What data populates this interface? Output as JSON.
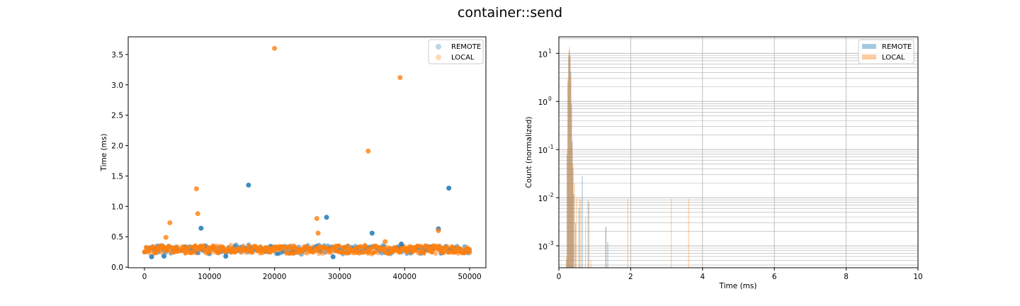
{
  "figure": {
    "title": "container::send"
  },
  "colors": {
    "remote": "#1f77b4",
    "local": "#ff7f0e",
    "grid": "#b0b0b0",
    "axis": "#000000"
  },
  "chart_data": [
    {
      "type": "scatter",
      "title": "",
      "xlabel": "",
      "ylabel": "Time (ms)",
      "xlim": [
        -2500,
        52500
      ],
      "ylim": [
        -0.01,
        3.79
      ],
      "xticks": [
        "0",
        "10000",
        "20000",
        "30000",
        "40000",
        "50000"
      ],
      "xtick_values": [
        0,
        10000,
        20000,
        30000,
        40000,
        50000
      ],
      "yticks": [
        "0.0",
        "0.5",
        "1.0",
        "1.5",
        "2.0",
        "2.5",
        "3.0",
        "3.5"
      ],
      "ytick_values": [
        0.0,
        0.5,
        1.0,
        1.5,
        2.0,
        2.5,
        3.0,
        3.5
      ],
      "grid": false,
      "legend": {
        "placement": "top-right",
        "entries": [
          "REMOTE",
          "LOCAL"
        ]
      },
      "band": {
        "x_range": [
          0,
          50000
        ],
        "y_range": [
          0.2,
          0.38
        ],
        "typical": 0.28
      },
      "series": [
        {
          "name": "REMOTE",
          "color": "#1f77b4",
          "outliers": [
            [
              16000,
              1.35
            ],
            [
              46800,
              1.3
            ],
            [
              8700,
              0.64
            ],
            [
              28000,
              0.82
            ],
            [
              35000,
              0.56
            ],
            [
              45200,
              0.63
            ],
            [
              39500,
              0.38
            ],
            [
              1100,
              0.17
            ],
            [
              3000,
              0.18
            ],
            [
              29000,
              0.17
            ],
            [
              12500,
              0.18
            ]
          ]
        },
        {
          "name": "LOCAL",
          "color": "#ff7f0e",
          "outliers": [
            [
              20000,
              3.6
            ],
            [
              39300,
              3.12
            ],
            [
              34400,
              1.91
            ],
            [
              8000,
              1.29
            ],
            [
              8200,
              0.88
            ],
            [
              3900,
              0.73
            ],
            [
              3300,
              0.49
            ],
            [
              26500,
              0.8
            ],
            [
              26700,
              0.56
            ],
            [
              45200,
              0.6
            ],
            [
              37000,
              0.42
            ]
          ]
        }
      ]
    },
    {
      "type": "histogram",
      "title": "",
      "xlabel": "Time (ms)",
      "ylabel": "Count (normalized)",
      "xlim": [
        0,
        10
      ],
      "ylim": [
        0.00035,
        22
      ],
      "yscale": "log",
      "xticks": [
        "0",
        "2",
        "4",
        "6",
        "8",
        "10"
      ],
      "xtick_values": [
        0,
        2,
        4,
        6,
        8,
        10
      ],
      "ytick_labels": [
        "10",
        "-3",
        "10",
        "-2",
        "10",
        "-1",
        "10",
        "0",
        "10",
        "1"
      ],
      "ytick_values": [
        0.001,
        0.01,
        0.1,
        1,
        10
      ],
      "grid": true,
      "legend": {
        "placement": "top-right",
        "entries": [
          "REMOTE",
          "LOCAL"
        ]
      },
      "series": [
        {
          "name": "REMOTE",
          "color": "#1f77b4",
          "bins": [
            [
              0.2,
              0.0005
            ],
            [
              0.22,
              0.08
            ],
            [
              0.24,
              2.5
            ],
            [
              0.26,
              8.5
            ],
            [
              0.28,
              11.5
            ],
            [
              0.3,
              9.0
            ],
            [
              0.32,
              4.2
            ],
            [
              0.34,
              0.9
            ],
            [
              0.36,
              0.15
            ],
            [
              0.38,
              0.04
            ],
            [
              0.4,
              0.012
            ],
            [
              0.45,
              0.003
            ],
            [
              0.55,
              0.006
            ],
            [
              0.64,
              0.028
            ],
            [
              0.82,
              0.008
            ],
            [
              1.3,
              0.0025
            ],
            [
              1.35,
              0.0012
            ]
          ]
        },
        {
          "name": "LOCAL",
          "color": "#ff7f0e",
          "bins": [
            [
              0.2,
              0.0006
            ],
            [
              0.22,
              0.1
            ],
            [
              0.24,
              3.0
            ],
            [
              0.26,
              10.0
            ],
            [
              0.28,
              13.5
            ],
            [
              0.3,
              8.5
            ],
            [
              0.32,
              3.5
            ],
            [
              0.34,
              0.7
            ],
            [
              0.36,
              0.12
            ],
            [
              0.38,
              0.05
            ],
            [
              0.42,
              0.02
            ],
            [
              0.48,
              0.01
            ],
            [
              0.56,
              0.01
            ],
            [
              0.6,
              0.009
            ],
            [
              0.73,
              0.004
            ],
            [
              0.8,
              0.009
            ],
            [
              0.88,
              0.0005
            ],
            [
              1.29,
              0.0024
            ],
            [
              1.91,
              0.0095
            ],
            [
              3.12,
              0.0095
            ],
            [
              3.6,
              0.0095
            ]
          ]
        }
      ]
    }
  ]
}
